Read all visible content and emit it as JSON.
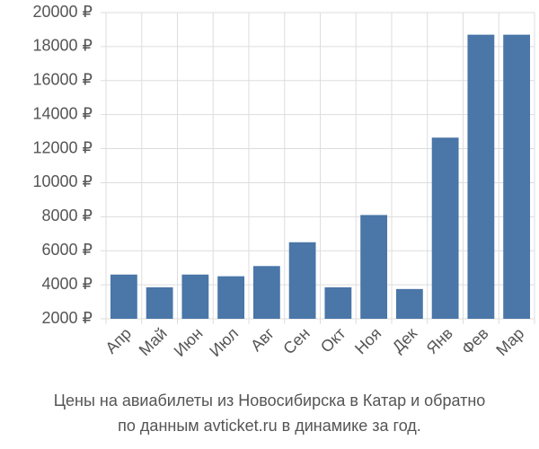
{
  "chart_data": {
    "type": "bar",
    "title": "Цены на авиабилеты из Новосибирска в Катар и обратно\nпо данным avticket.ru в динамике за год.",
    "categories": [
      "Апр",
      "Май",
      "Июн",
      "Июл",
      "Авг",
      "Сен",
      "Окт",
      "Ноя",
      "Дек",
      "Янв",
      "Фев",
      "Мар"
    ],
    "values": [
      4600,
      3850,
      4600,
      4500,
      5100,
      6500,
      3850,
      8100,
      3750,
      12650,
      18700,
      18700
    ],
    "color": "#4a76a8",
    "ylim": [
      2000,
      20000
    ],
    "yticks": [
      {
        "value": 2000,
        "label": "2000 ₽"
      },
      {
        "value": 4000,
        "label": "4000 ₽"
      },
      {
        "value": 6000,
        "label": "6000 ₽"
      },
      {
        "value": 8000,
        "label": "8000 ₽"
      },
      {
        "value": 10000,
        "label": "10000 ₽"
      },
      {
        "value": 12000,
        "label": "12000 ₽"
      },
      {
        "value": 14000,
        "label": "14000 ₽"
      },
      {
        "value": 16000,
        "label": "16000 ₽"
      },
      {
        "value": 18000,
        "label": "18000 ₽"
      },
      {
        "value": 20000,
        "label": "20000 ₽"
      }
    ],
    "grid": true
  }
}
